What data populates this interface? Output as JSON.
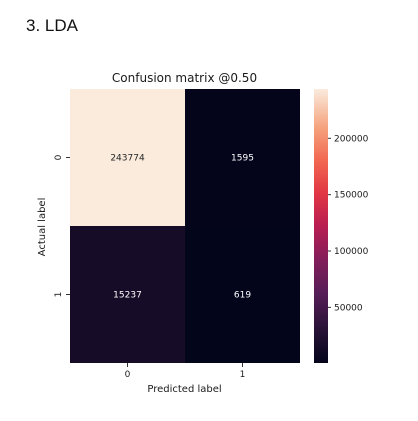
{
  "heading": "3. LDA",
  "chart_data": {
    "type": "heatmap",
    "title": "Confusion matrix @0.50",
    "xlabel": "Predicted label",
    "ylabel": "Actual label",
    "x_categories": [
      "0",
      "1"
    ],
    "y_categories": [
      "0",
      "1"
    ],
    "values": [
      [
        243774,
        1595
      ],
      [
        15237,
        619
      ]
    ],
    "colormap": "rocket",
    "colorbar": {
      "ticks": [
        200000,
        150000,
        100000,
        50000
      ],
      "tick_labels": [
        "200000",
        "150000",
        "100000",
        "50000"
      ],
      "range": [
        619,
        243774
      ]
    }
  }
}
